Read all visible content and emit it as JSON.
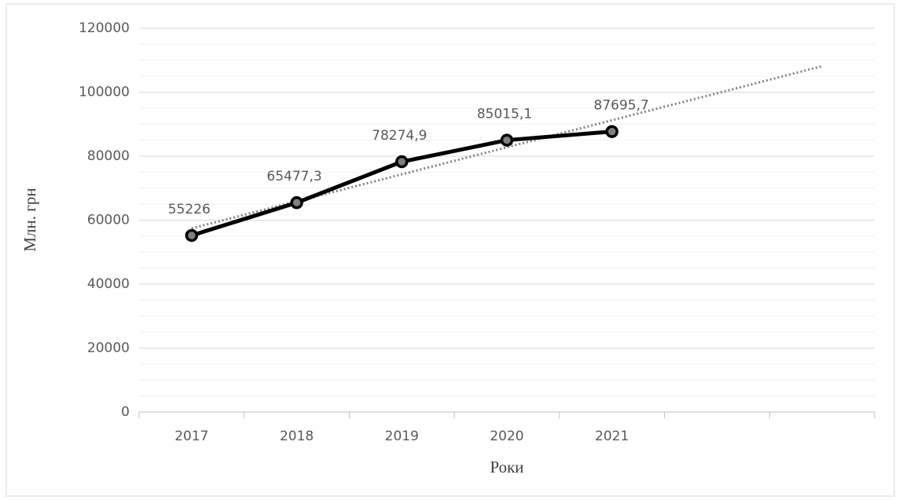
{
  "chart_data": {
    "type": "line",
    "y_axis_label": "Млн. грн",
    "x_axis_label": "Роки",
    "categories": [
      "2017",
      "2018",
      "2019",
      "2020",
      "2021",
      null,
      null
    ],
    "values": [
      55226,
      65477.3,
      78274.9,
      85015.1,
      87695.7,
      null,
      null
    ],
    "value_labels": [
      "55226",
      "65477,3",
      "78274,9",
      "85015,1",
      "87695,7",
      null,
      null
    ],
    "color": "#000000",
    "trendline": {
      "style": "dotted",
      "color": "#808080",
      "values": [
        57442,
        65890,
        74338,
        82785,
        91233,
        99681,
        108128
      ]
    },
    "ylim": [
      0,
      120000
    ],
    "yticks": [
      0,
      20000,
      40000,
      60000,
      80000,
      100000,
      120000
    ],
    "minor_yticks": [
      5000,
      10000,
      15000,
      25000,
      30000,
      35000,
      45000,
      50000,
      55000,
      65000,
      70000,
      75000,
      85000,
      90000,
      95000,
      105000,
      110000,
      115000
    ],
    "grid": true
  }
}
